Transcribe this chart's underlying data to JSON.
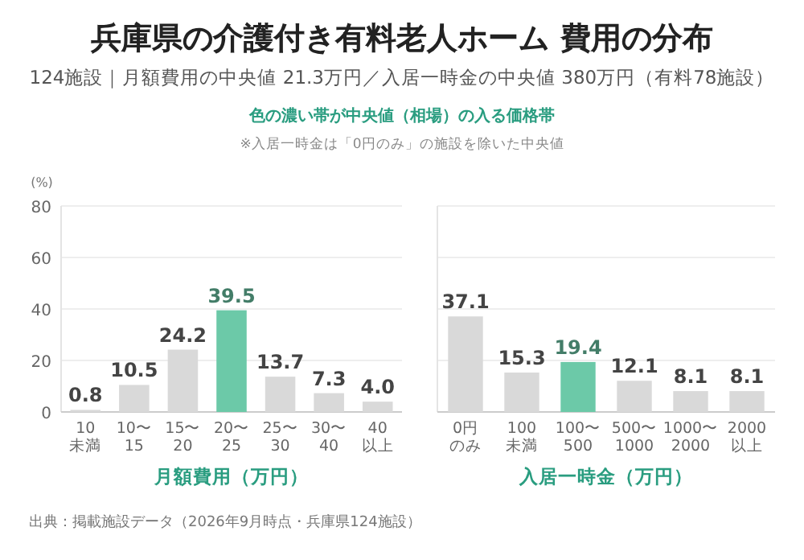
{
  "chart_data": [
    {
      "type": "bar",
      "title": "兵庫県の介護付き有料老人ホーム 費用の分布",
      "subtitle": "124施設｜月額費用の中央値 21.3万円／入居一時金の中央値 380万円（有料78施設）",
      "annotations": [
        "色の濃い帯が中央値（相場）の入る価格帯",
        "※入居一時金は「0円のみ」の施設を除いた中央値",
        "出典：掲載施設データ（2026年9月時点・兵庫県124施設）"
      ],
      "ylabel": "(%)",
      "xlabel": "月額費用（万円）",
      "categories": [
        "10\n未満",
        "10〜\n15",
        "15〜\n20",
        "20〜\n25",
        "25〜\n30",
        "30〜\n40",
        "40\n以上"
      ],
      "values": [
        0.8,
        10.5,
        24.2,
        39.5,
        13.7,
        7.3,
        4.0
      ],
      "value_labels": [
        "0.8",
        "10.5",
        "24.2",
        "39.5",
        "13.7",
        "7.3",
        "4.0"
      ],
      "colors": [
        "#d9d9d9",
        "#d9d9d9",
        "#d9d9d9",
        "#6cc9a8",
        "#d9d9d9",
        "#d9d9d9",
        "#d9d9d9"
      ],
      "ylim": [
        0,
        80
      ],
      "yticks": [
        0,
        20,
        40,
        60,
        80
      ],
      "grid": "y"
    },
    {
      "type": "bar",
      "xlabel": "入居一時金（万円）",
      "categories": [
        "0円のみ",
        "100\n未満",
        "100〜\n500",
        "500〜\n1000",
        "1000〜\n2000",
        "2000\n以上"
      ],
      "values": [
        37.1,
        15.3,
        19.4,
        12.1,
        8.1,
        8.1
      ],
      "colors": [
        "#d9d9d9",
        "#d9d9d9",
        "#6cc9a8",
        "#d9d9d9",
        "#d9d9d9",
        "#d9d9d9"
      ],
      "ylim": [
        0,
        80
      ],
      "yticks": [
        0,
        20,
        40,
        60,
        80
      ],
      "grid": "y",
      "data_labels": true,
      "tick_labels": "x"
    }
  ]
}
